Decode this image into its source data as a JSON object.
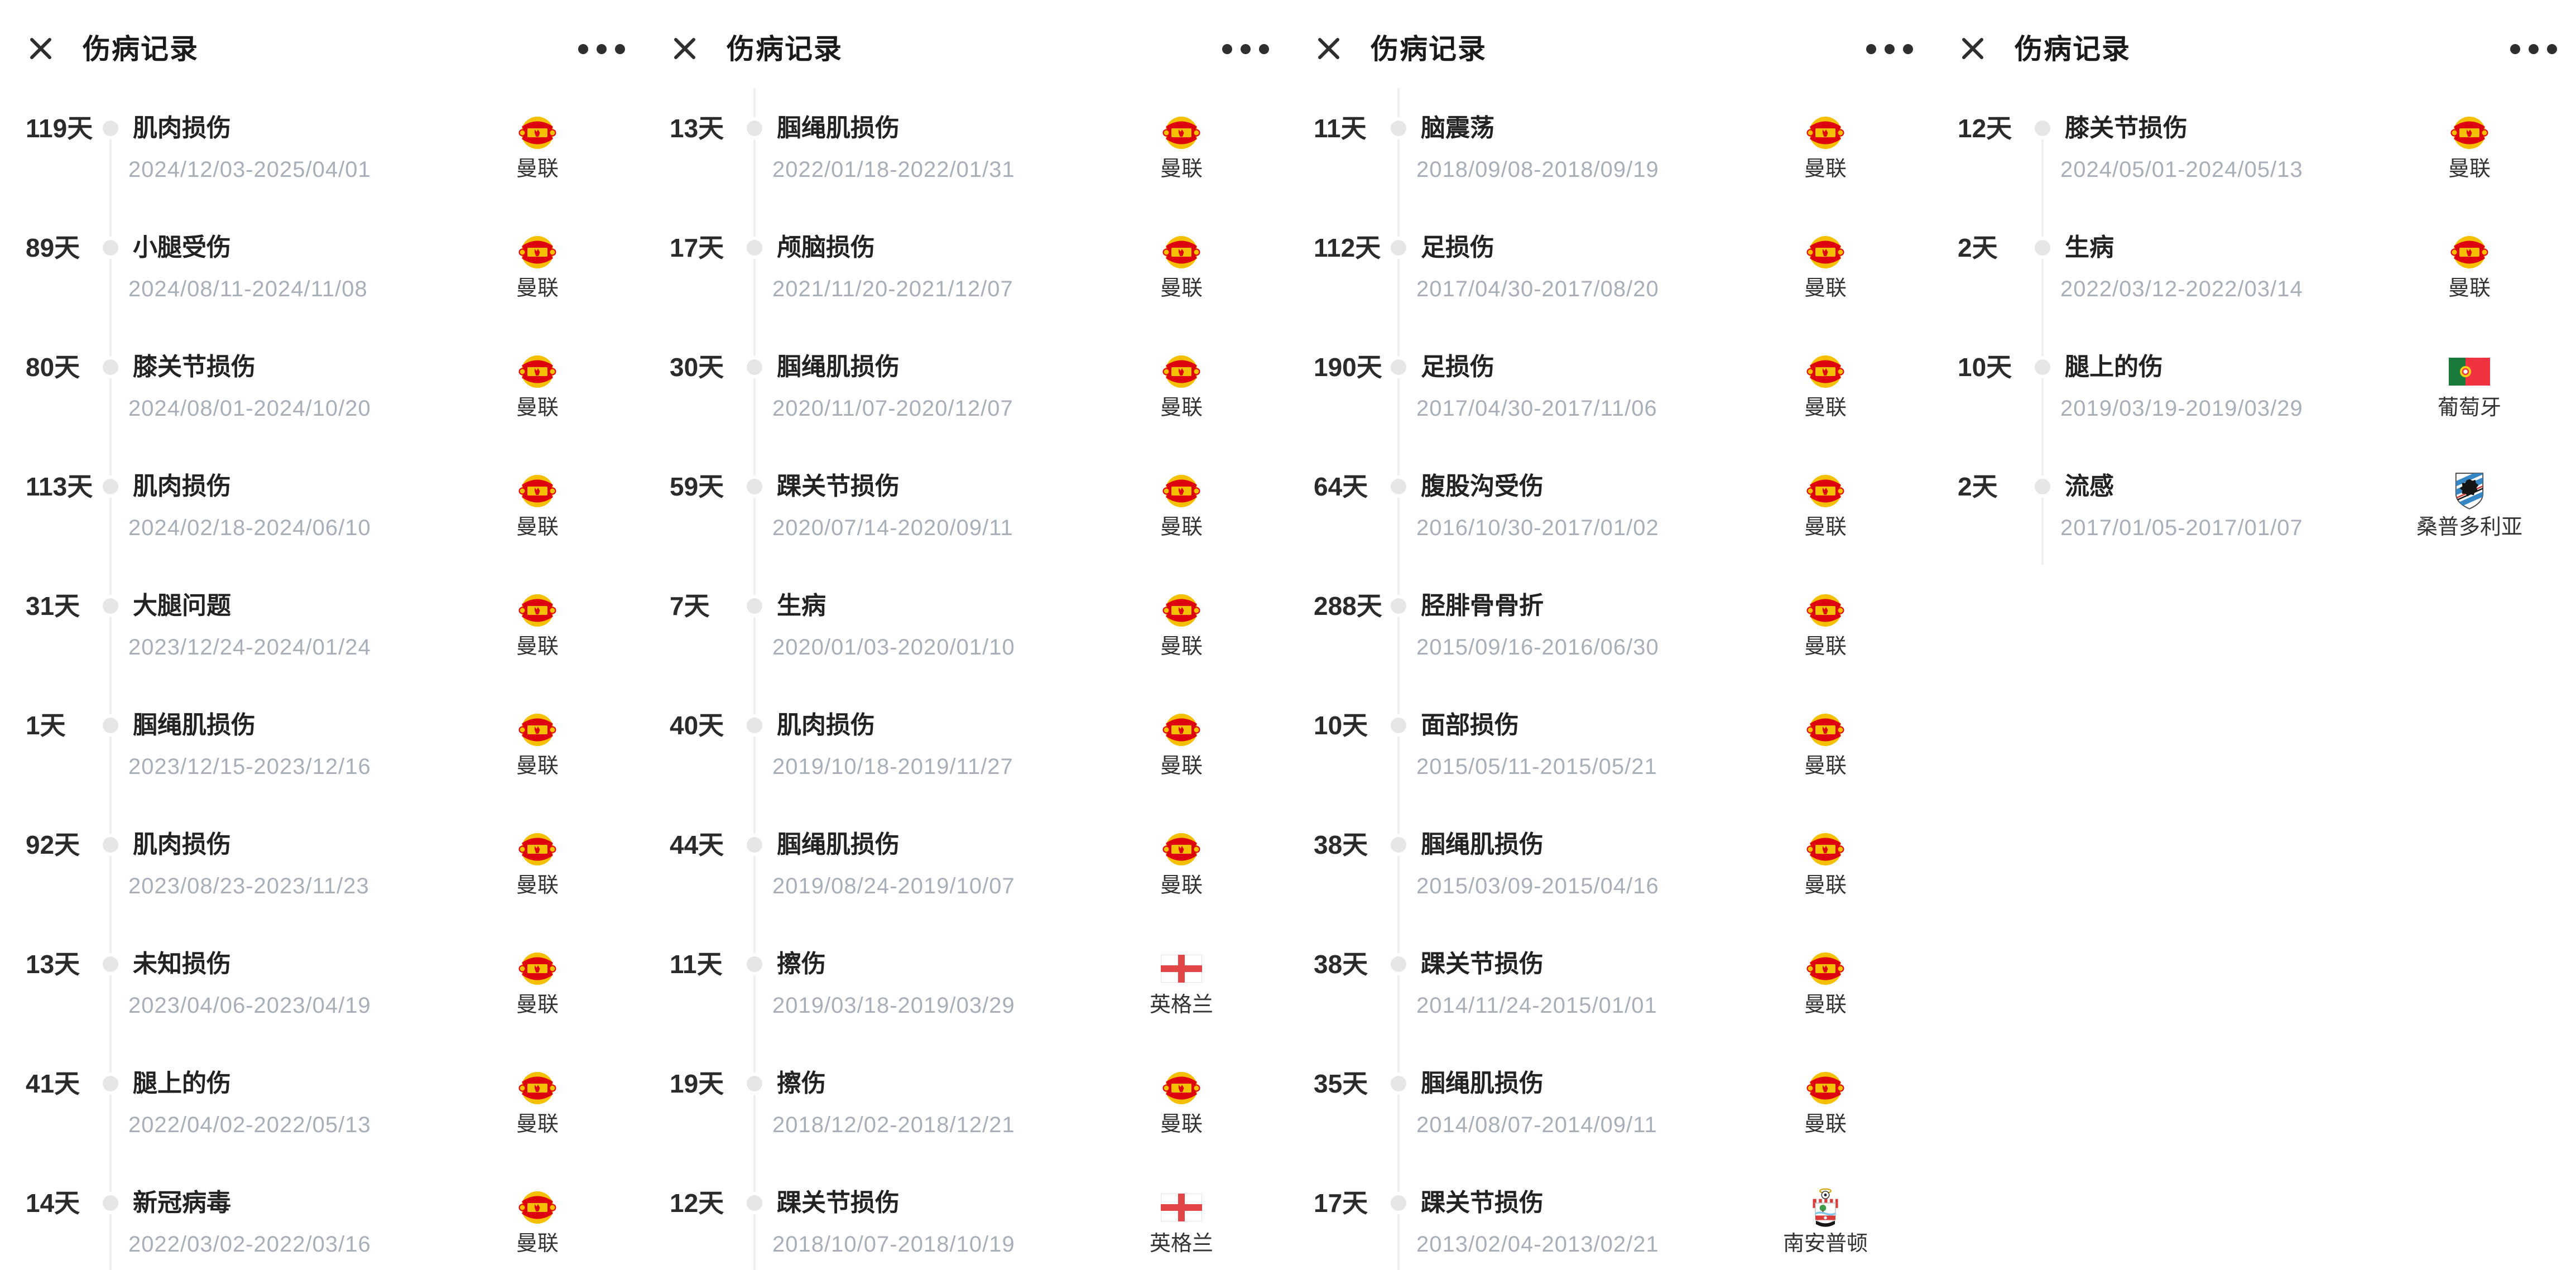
{
  "ui": {
    "title": "伤病记录",
    "close_icon": "close-icon",
    "more_icon": "more-dots-icon",
    "days_suffix": "天"
  },
  "colors": {
    "title_text": "#1a1a1a",
    "days_text": "#2b2b2b",
    "injury_text": "#222222",
    "date_text": "#a9afb8",
    "team_text": "#333333",
    "timeline_dot": "#e4e6e8",
    "timeline_line": "#efefef",
    "icon_dark": "#2e2e2e",
    "man_utd_red": "#dd0410",
    "man_utd_gold": "#f5c000",
    "england_cross_red": "#e24545",
    "portugal_green": "#1a7a3c",
    "portugal_red": "#ef3340",
    "portugal_emblem_gold": "#f7d117",
    "southampton_red": "#da3c3c",
    "southampton_green": "#3f9b45",
    "southampton_wave_blue": "#7fc6e8",
    "southampton_halo_gold": "#d9a50f",
    "sampdoria_blue": "#3586c4",
    "sampdoria_stripe_red": "#d23333",
    "sampdoria_black": "#151515"
  },
  "panels": [
    {
      "timeline": {
        "starts_above_first_entry": false,
        "runs_to_bottom": true
      },
      "entries": [
        {
          "days": "119天",
          "injury": "肌肉损伤",
          "date_range": "2024/12/03-2025/04/01",
          "team": "曼联",
          "badge": "man-utd"
        },
        {
          "days": "89天",
          "injury": "小腿受伤",
          "date_range": "2024/08/11-2024/11/08",
          "team": "曼联",
          "badge": "man-utd"
        },
        {
          "days": "80天",
          "injury": "膝关节损伤",
          "date_range": "2024/08/01-2024/10/20",
          "team": "曼联",
          "badge": "man-utd"
        },
        {
          "days": "113天",
          "injury": "肌肉损伤",
          "date_range": "2024/02/18-2024/06/10",
          "team": "曼联",
          "badge": "man-utd"
        },
        {
          "days": "31天",
          "injury": "大腿问题",
          "date_range": "2023/12/24-2024/01/24",
          "team": "曼联",
          "badge": "man-utd"
        },
        {
          "days": "1天",
          "injury": "腘绳肌损伤",
          "date_range": "2023/12/15-2023/12/16",
          "team": "曼联",
          "badge": "man-utd"
        },
        {
          "days": "92天",
          "injury": "肌肉损伤",
          "date_range": "2023/08/23-2023/11/23",
          "team": "曼联",
          "badge": "man-utd"
        },
        {
          "days": "13天",
          "injury": "未知损伤",
          "date_range": "2023/04/06-2023/04/19",
          "team": "曼联",
          "badge": "man-utd"
        },
        {
          "days": "41天",
          "injury": "腿上的伤",
          "date_range": "2022/04/02-2022/05/13",
          "team": "曼联",
          "badge": "man-utd"
        },
        {
          "days": "14天",
          "injury": "新冠病毒",
          "date_range": "2022/03/02-2022/03/16",
          "team": "曼联",
          "badge": "man-utd"
        }
      ]
    },
    {
      "timeline": {
        "starts_above_first_entry": true,
        "runs_to_bottom": true
      },
      "entries": [
        {
          "days": "13天",
          "injury": "腘绳肌损伤",
          "date_range": "2022/01/18-2022/01/31",
          "team": "曼联",
          "badge": "man-utd"
        },
        {
          "days": "17天",
          "injury": "颅脑损伤",
          "date_range": "2021/11/20-2021/12/07",
          "team": "曼联",
          "badge": "man-utd"
        },
        {
          "days": "30天",
          "injury": "腘绳肌损伤",
          "date_range": "2020/11/07-2020/12/07",
          "team": "曼联",
          "badge": "man-utd"
        },
        {
          "days": "59天",
          "injury": "踝关节损伤",
          "date_range": "2020/07/14-2020/09/11",
          "team": "曼联",
          "badge": "man-utd"
        },
        {
          "days": "7天",
          "injury": "生病",
          "date_range": "2020/01/03-2020/01/10",
          "team": "曼联",
          "badge": "man-utd"
        },
        {
          "days": "40天",
          "injury": "肌肉损伤",
          "date_range": "2019/10/18-2019/11/27",
          "team": "曼联",
          "badge": "man-utd"
        },
        {
          "days": "44天",
          "injury": "腘绳肌损伤",
          "date_range": "2019/08/24-2019/10/07",
          "team": "曼联",
          "badge": "man-utd"
        },
        {
          "days": "11天",
          "injury": "擦伤",
          "date_range": "2019/03/18-2019/03/29",
          "team": "英格兰",
          "badge": "england"
        },
        {
          "days": "19天",
          "injury": "擦伤",
          "date_range": "2018/12/02-2018/12/21",
          "team": "曼联",
          "badge": "man-utd"
        },
        {
          "days": "12天",
          "injury": "踝关节损伤",
          "date_range": "2018/10/07-2018/10/19",
          "team": "英格兰",
          "badge": "england"
        }
      ]
    },
    {
      "timeline": {
        "starts_above_first_entry": true,
        "runs_to_bottom": true
      },
      "entries": [
        {
          "days": "11天",
          "injury": "脑震荡",
          "date_range": "2018/09/08-2018/09/19",
          "team": "曼联",
          "badge": "man-utd"
        },
        {
          "days": "112天",
          "injury": "足损伤",
          "date_range": "2017/04/30-2017/08/20",
          "team": "曼联",
          "badge": "man-utd"
        },
        {
          "days": "190天",
          "injury": "足损伤",
          "date_range": "2017/04/30-2017/11/06",
          "team": "曼联",
          "badge": "man-utd"
        },
        {
          "days": "64天",
          "injury": "腹股沟受伤",
          "date_range": "2016/10/30-2017/01/02",
          "team": "曼联",
          "badge": "man-utd"
        },
        {
          "days": "288天",
          "injury": "胫腓骨骨折",
          "date_range": "2015/09/16-2016/06/30",
          "team": "曼联",
          "badge": "man-utd"
        },
        {
          "days": "10天",
          "injury": "面部损伤",
          "date_range": "2015/05/11-2015/05/21",
          "team": "曼联",
          "badge": "man-utd"
        },
        {
          "days": "38天",
          "injury": "腘绳肌损伤",
          "date_range": "2015/03/09-2015/04/16",
          "team": "曼联",
          "badge": "man-utd"
        },
        {
          "days": "38天",
          "injury": "踝关节损伤",
          "date_range": "2014/11/24-2015/01/01",
          "team": "曼联",
          "badge": "man-utd"
        },
        {
          "days": "35天",
          "injury": "腘绳肌损伤",
          "date_range": "2014/08/07-2014/09/11",
          "team": "曼联",
          "badge": "man-utd"
        },
        {
          "days": "17天",
          "injury": "踝关节损伤",
          "date_range": "2013/02/04-2013/02/21",
          "team": "南安普顿",
          "badge": "southampton"
        }
      ]
    },
    {
      "timeline": {
        "starts_above_first_entry": false,
        "runs_to_bottom": false
      },
      "entries": [
        {
          "days": "12天",
          "injury": "膝关节损伤",
          "date_range": "2024/05/01-2024/05/13",
          "team": "曼联",
          "badge": "man-utd"
        },
        {
          "days": "2天",
          "injury": "生病",
          "date_range": "2022/03/12-2022/03/14",
          "team": "曼联",
          "badge": "man-utd"
        },
        {
          "days": "10天",
          "injury": "腿上的伤",
          "date_range": "2019/03/19-2019/03/29",
          "team": "葡萄牙",
          "badge": "portugal"
        },
        {
          "days": "2天",
          "injury": "流感",
          "date_range": "2017/01/05-2017/01/07",
          "team": "桑普多利亚",
          "badge": "sampdoria"
        }
      ]
    }
  ]
}
